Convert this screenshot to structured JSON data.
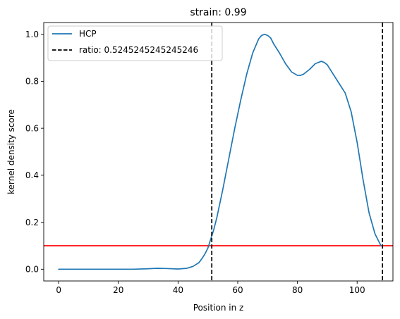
{
  "chart_data": {
    "type": "line",
    "title": "strain: 0.99",
    "xlabel": "Position in z",
    "ylabel": "kernel density score",
    "xlim": [
      -5,
      112
    ],
    "ylim": [
      -0.05,
      1.05
    ],
    "xticks": [
      0,
      20,
      40,
      60,
      80,
      100
    ],
    "yticks": [
      0.0,
      0.2,
      0.4,
      0.6,
      0.8,
      1.0
    ],
    "xtick_labels": [
      "0",
      "20",
      "40",
      "60",
      "80",
      "100"
    ],
    "ytick_labels": [
      "0.0",
      "0.2",
      "0.4",
      "0.6",
      "0.8",
      "1.0"
    ],
    "grid": false,
    "legend_position": "top-left",
    "series": [
      {
        "name": "HCP",
        "color": "#1f77b4",
        "style": "solid",
        "x": [
          0,
          10,
          20,
          25,
          30,
          33,
          36,
          40,
          43,
          45,
          47,
          48,
          49,
          50,
          51,
          52,
          53,
          55,
          57,
          59,
          61,
          63,
          65,
          67,
          68,
          69,
          70,
          71,
          72,
          74,
          76,
          78,
          80,
          81,
          82,
          84,
          86,
          88,
          89,
          90,
          92,
          94,
          96,
          98,
          100,
          102,
          104,
          106,
          108
        ],
        "y": [
          0.0,
          0.0,
          0.0,
          0.0,
          0.002,
          0.004,
          0.003,
          0.001,
          0.004,
          0.012,
          0.028,
          0.045,
          0.065,
          0.09,
          0.13,
          0.17,
          0.22,
          0.34,
          0.47,
          0.6,
          0.72,
          0.83,
          0.92,
          0.98,
          0.995,
          1.0,
          0.995,
          0.985,
          0.96,
          0.92,
          0.875,
          0.84,
          0.825,
          0.825,
          0.83,
          0.85,
          0.875,
          0.885,
          0.88,
          0.87,
          0.83,
          0.79,
          0.75,
          0.67,
          0.54,
          0.38,
          0.24,
          0.15,
          0.1
        ]
      }
    ],
    "vlines": [
      {
        "name": "ratio: 0.5245245245245246",
        "x": 51.3,
        "color": "#000000",
        "style": "dashed"
      },
      {
        "x": 108.5,
        "color": "#000000",
        "style": "dashed"
      }
    ],
    "hlines": [
      {
        "y": 0.1,
        "color": "#ff0000",
        "style": "solid"
      }
    ],
    "legend": [
      {
        "label": "HCP",
        "style": "solid",
        "color": "#1f77b4"
      },
      {
        "label": "ratio: 0.5245245245245246",
        "style": "dashed",
        "color": "#000000"
      }
    ]
  }
}
